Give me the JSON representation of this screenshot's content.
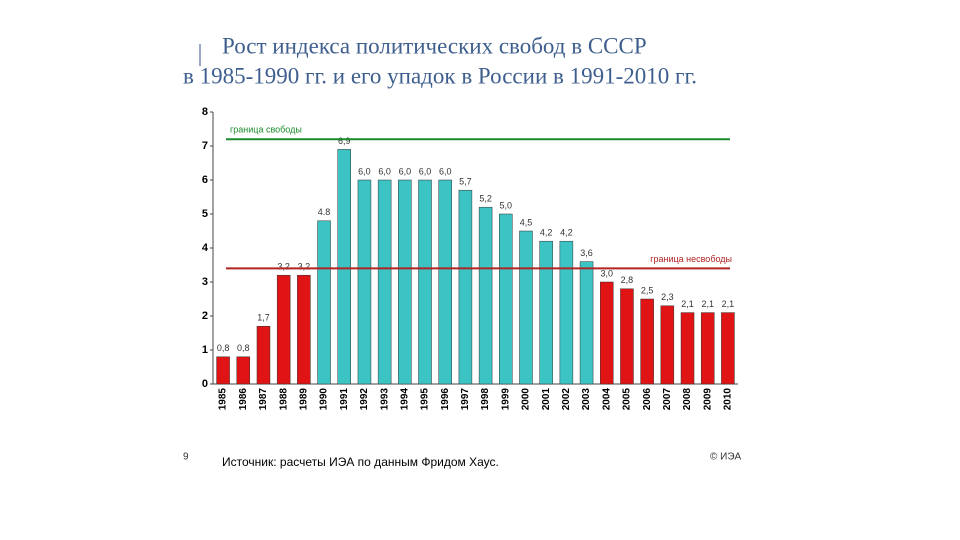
{
  "slide": {
    "title_lines": [
      "Рост индекса политических свобод в СССР",
      "в 1985-1990 гг. и его упадок в России в 1991-2010 гг."
    ],
    "page_number": "9",
    "source": "Источник: расчеты ИЭА по данным Фридом Хаус.",
    "copyright": "© ИЭА"
  },
  "chart_data": {
    "type": "bar",
    "categories": [
      "1985",
      "1986",
      "1987",
      "1988",
      "1989",
      "1990",
      "1991",
      "1992",
      "1993",
      "1994",
      "1995",
      "1996",
      "1997",
      "1998",
      "1999",
      "2000",
      "2001",
      "2002",
      "2003",
      "2004",
      "2005",
      "2006",
      "2007",
      "2008",
      "2009",
      "2010"
    ],
    "values": [
      0.8,
      0.8,
      1.7,
      3.2,
      3.2,
      4.8,
      6.9,
      6.0,
      6.0,
      6.0,
      6.0,
      6.0,
      5.7,
      5.2,
      5.0,
      4.5,
      4.2,
      4.2,
      3.6,
      3.0,
      2.8,
      2.5,
      2.3,
      2.1,
      2.1,
      2.1
    ],
    "value_labels": [
      "0,8",
      "0,8",
      "1,7",
      "3,2",
      "3,2",
      "4.8",
      "6,9",
      "6,0",
      "6,0",
      "6,0",
      "6,0",
      "6,0",
      "5,7",
      "5,2",
      "5,0",
      "4,5",
      "4,2",
      "4,2",
      "3,6",
      "3,0",
      "2,8",
      "2,5",
      "2,3",
      "2,1",
      "2,1",
      "2,1"
    ],
    "colors": [
      "#e01414",
      "#e01414",
      "#e01414",
      "#e01414",
      "#e01414",
      "#3cc3c3",
      "#3cc3c3",
      "#3cc3c3",
      "#3cc3c3",
      "#3cc3c3",
      "#3cc3c3",
      "#3cc3c3",
      "#3cc3c3",
      "#3cc3c3",
      "#3cc3c3",
      "#3cc3c3",
      "#3cc3c3",
      "#3cc3c3",
      "#3cc3c3",
      "#e01414",
      "#e01414",
      "#e01414",
      "#e01414",
      "#e01414",
      "#e01414",
      "#e01414"
    ],
    "ylim": [
      0,
      8
    ],
    "yticks": [
      0,
      1,
      2,
      3,
      4,
      5,
      6,
      7,
      8
    ],
    "reference_lines": [
      {
        "value": 7.2,
        "label": "граница свободы",
        "color": "#1a8a2a"
      },
      {
        "value": 3.4,
        "label": "граница несвободы",
        "color": "#b02424"
      }
    ]
  }
}
